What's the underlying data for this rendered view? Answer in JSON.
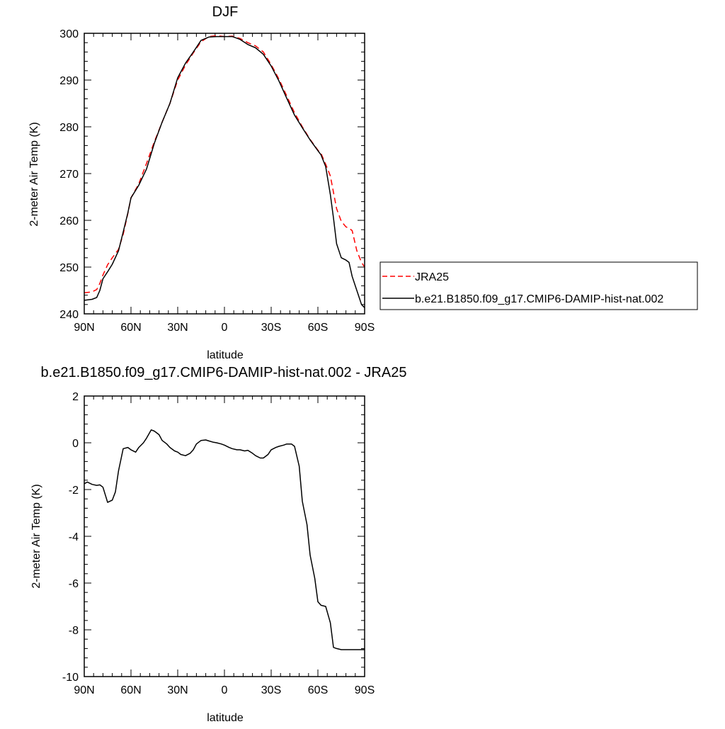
{
  "chart_data": [
    {
      "type": "line",
      "title": "DJF",
      "xlabel": "latitude",
      "ylabel": "2-meter Air Temp (K)",
      "xlim": [
        90,
        -90
      ],
      "ylim": [
        240,
        300
      ],
      "x_ticks": [
        90,
        60,
        30,
        0,
        -30,
        -60,
        -90
      ],
      "x_tick_labels": [
        "90N",
        "60N",
        "30N",
        "0",
        "30S",
        "60S",
        "90S"
      ],
      "y_ticks": [
        240,
        250,
        260,
        270,
        280,
        290,
        300
      ],
      "y_tick_labels": [
        "240",
        "250",
        "260",
        "270",
        "280",
        "290",
        "300"
      ],
      "grid": false,
      "legend_position": "right",
      "series": [
        {
          "name": "JRA25",
          "color": "#ff0000",
          "dash": "dashed",
          "x": [
            90,
            85,
            82,
            80,
            78,
            75,
            72,
            68,
            65,
            62,
            60,
            55,
            50,
            45,
            40,
            35,
            30,
            25,
            20,
            15,
            10,
            5,
            0,
            -5,
            -10,
            -15,
            -20,
            -25,
            -30,
            -35,
            -40,
            -45,
            -50,
            -55,
            -60,
            -62,
            -65,
            -68,
            -70,
            -72,
            -75,
            -78,
            -80,
            -82,
            -85,
            -88,
            -90
          ],
          "y": [
            244.5,
            244.7,
            245.2,
            246.5,
            248.3,
            250.5,
            252.0,
            253.8,
            257.0,
            261.5,
            264.8,
            267.8,
            272.2,
            276.8,
            281.0,
            285.0,
            290.0,
            293.2,
            295.8,
            298.2,
            299.3,
            299.5,
            299.3,
            299.4,
            298.9,
            298.0,
            297.3,
            296.0,
            293.3,
            290.2,
            286.6,
            283.0,
            280.0,
            277.3,
            275.0,
            274.3,
            272.0,
            269.5,
            266.0,
            262.5,
            259.8,
            258.6,
            258.3,
            257.8,
            253.5,
            251.0,
            250.0
          ]
        },
        {
          "name": "b.e21.B1850.f09_g17.CMIP6-DAMIP-hist-nat.002",
          "color": "#000000",
          "dash": "solid",
          "x": [
            90,
            85,
            82,
            80,
            78,
            75,
            72,
            68,
            65,
            62,
            60,
            55,
            50,
            45,
            40,
            35,
            30,
            25,
            20,
            15,
            10,
            5,
            0,
            -5,
            -10,
            -15,
            -20,
            -25,
            -30,
            -35,
            -40,
            -45,
            -50,
            -55,
            -60,
            -62,
            -65,
            -68,
            -70,
            -72,
            -75,
            -78,
            -80,
            -82,
            -85,
            -88,
            -90
          ],
          "y": [
            242.9,
            243.1,
            243.5,
            245.0,
            247.5,
            249.0,
            250.6,
            253.5,
            257.5,
            261.6,
            264.8,
            267.5,
            271.0,
            276.5,
            281.0,
            285.0,
            290.5,
            293.6,
            296.0,
            298.5,
            299.2,
            299.3,
            299.3,
            299.3,
            298.7,
            297.6,
            296.9,
            295.5,
            293.0,
            289.8,
            286.1,
            282.5,
            279.8,
            277.2,
            274.9,
            274.0,
            271.5,
            265.5,
            260.5,
            255.0,
            252.0,
            251.5,
            251.0,
            248.0,
            245.0,
            242.0,
            241.3
          ]
        }
      ]
    },
    {
      "type": "line",
      "title": "b.e21.B1850.f09_g17.CMIP6-DAMIP-hist-nat.002 - JRA25",
      "xlabel": "latitude",
      "ylabel": "2-meter Air Temp (K)",
      "xlim": [
        90,
        -90
      ],
      "ylim": [
        -10,
        2
      ],
      "x_ticks": [
        90,
        60,
        30,
        0,
        -30,
        -60,
        -90
      ],
      "x_tick_labels": [
        "90N",
        "60N",
        "30N",
        "0",
        "30S",
        "60S",
        "90S"
      ],
      "y_ticks": [
        -10,
        -8,
        -6,
        -4,
        -2,
        0,
        2
      ],
      "y_tick_labels": [
        "-10",
        "-8",
        "-6",
        "-4",
        "-2",
        "0",
        "2"
      ],
      "grid": false,
      "series": [
        {
          "color": "#000000",
          "dash": "solid",
          "x": [
            90,
            88,
            85,
            82,
            80,
            78,
            75,
            72,
            70,
            68,
            65,
            62,
            60,
            57,
            55,
            52,
            50,
            47,
            45,
            42,
            40,
            37,
            35,
            32,
            30,
            28,
            25,
            22,
            20,
            18,
            15,
            12,
            10,
            7,
            5,
            2,
            0,
            -3,
            -5,
            -8,
            -10,
            -13,
            -15,
            -18,
            -20,
            -23,
            -25,
            -28,
            -30,
            -33,
            -35,
            -38,
            -40,
            -43,
            -45,
            -48,
            -50,
            -53,
            -55,
            -58,
            -60,
            -62,
            -65,
            -68,
            -70,
            -72,
            -75,
            -78,
            -80,
            -82,
            -85,
            -87,
            -90
          ],
          "y": [
            -1.75,
            -1.68,
            -1.78,
            -1.82,
            -1.8,
            -1.9,
            -2.55,
            -2.45,
            -2.1,
            -1.2,
            -0.25,
            -0.2,
            -0.3,
            -0.4,
            -0.2,
            0.0,
            0.2,
            0.55,
            0.5,
            0.35,
            0.1,
            -0.05,
            -0.2,
            -0.35,
            -0.4,
            -0.5,
            -0.55,
            -0.45,
            -0.3,
            -0.05,
            0.1,
            0.12,
            0.08,
            0.02,
            0.0,
            -0.05,
            -0.1,
            -0.2,
            -0.25,
            -0.3,
            -0.3,
            -0.35,
            -0.32,
            -0.45,
            -0.55,
            -0.65,
            -0.65,
            -0.5,
            -0.3,
            -0.2,
            -0.15,
            -0.1,
            -0.05,
            -0.05,
            -0.15,
            -1.0,
            -2.5,
            -3.5,
            -4.8,
            -5.8,
            -6.8,
            -6.95,
            -7.0,
            -7.7,
            -8.75,
            -8.8,
            -8.85,
            -8.85,
            -8.85,
            -8.85,
            -8.85,
            -8.85,
            -8.85
          ]
        }
      ]
    }
  ]
}
